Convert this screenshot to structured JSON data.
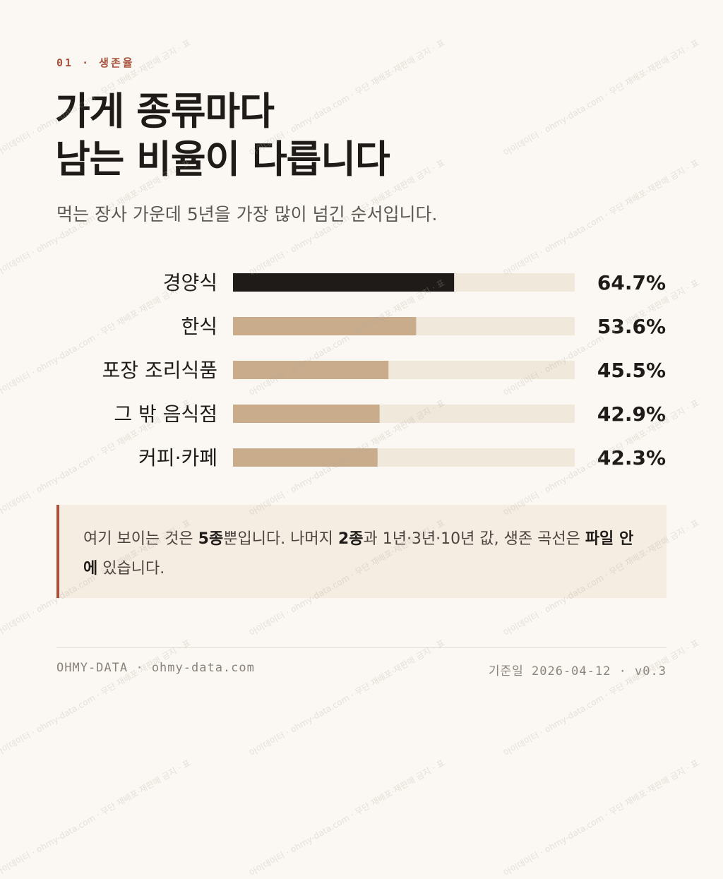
{
  "kicker": "01 · 생존율",
  "headline": {
    "line1": "가게 종류마다",
    "line2": "남는 비율이 다릅니다"
  },
  "subtitle": "먹는 장사 가운데 5년을 가장 많이 넘긴 순서입니다.",
  "chart_data": {
    "type": "bar",
    "orientation": "horizontal",
    "categories": [
      "경양식",
      "한식",
      "포장 조리식품",
      "그 밖 음식점",
      "커피·카페"
    ],
    "values": [
      64.7,
      53.6,
      45.5,
      42.9,
      42.3
    ],
    "value_labels": [
      "64.7%",
      "53.6%",
      "45.5%",
      "42.9%",
      "42.3%"
    ],
    "xlim": [
      0,
      100
    ],
    "highlight_index": 0,
    "colors": {
      "highlight": "#1f1b18",
      "bar": "#c8ac8c",
      "track": "#f1e8dc"
    }
  },
  "callout": {
    "p1": "여기 보이는 것은 ",
    "b1": "5종",
    "p2": "뿐입니다. 나머지 ",
    "b2": "2종",
    "p3": "과 1년·3년·10년 값, 생존 곡선은 ",
    "b3": "파일 안에",
    "p4": " 있습니다."
  },
  "footer": {
    "left": "OHMY-DATA · ohmy-data.com",
    "right": "기준일 2026-04-12 · v0.3"
  },
  "watermark": "아이데이터 · ohmy-data.com · 무단 재배포·재판매 금지 · 표"
}
